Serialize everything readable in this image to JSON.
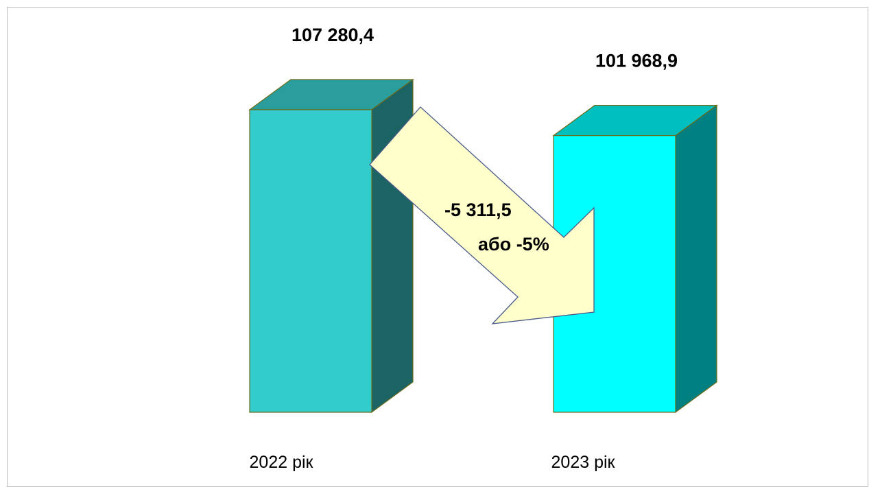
{
  "chart_data": {
    "type": "bar",
    "categories": [
      "2022 рік",
      "2023 рік"
    ],
    "values": [
      107280.4,
      101968.9
    ],
    "value_labels": [
      "107 280,4",
      "101 968,9"
    ],
    "annotation": {
      "line1": "-5 311,5",
      "line2": "або -5%",
      "change_value": -5311.5,
      "change_percent": -5
    },
    "title": "",
    "xlabel": "",
    "ylabel": "",
    "grid": false,
    "legend": "none",
    "colors": {
      "bar1_front": "#33CCCC",
      "bar1_top": "#2A9D9D",
      "bar1_side": "#1C6464",
      "bar2_front": "#00FFFF",
      "bar2_top": "#00BFBF",
      "bar2_side": "#008080",
      "bar_edge": "#6B6B1A",
      "arrow_fill": "#FFFFCC",
      "arrow_edge": "#4A5A8A"
    }
  }
}
